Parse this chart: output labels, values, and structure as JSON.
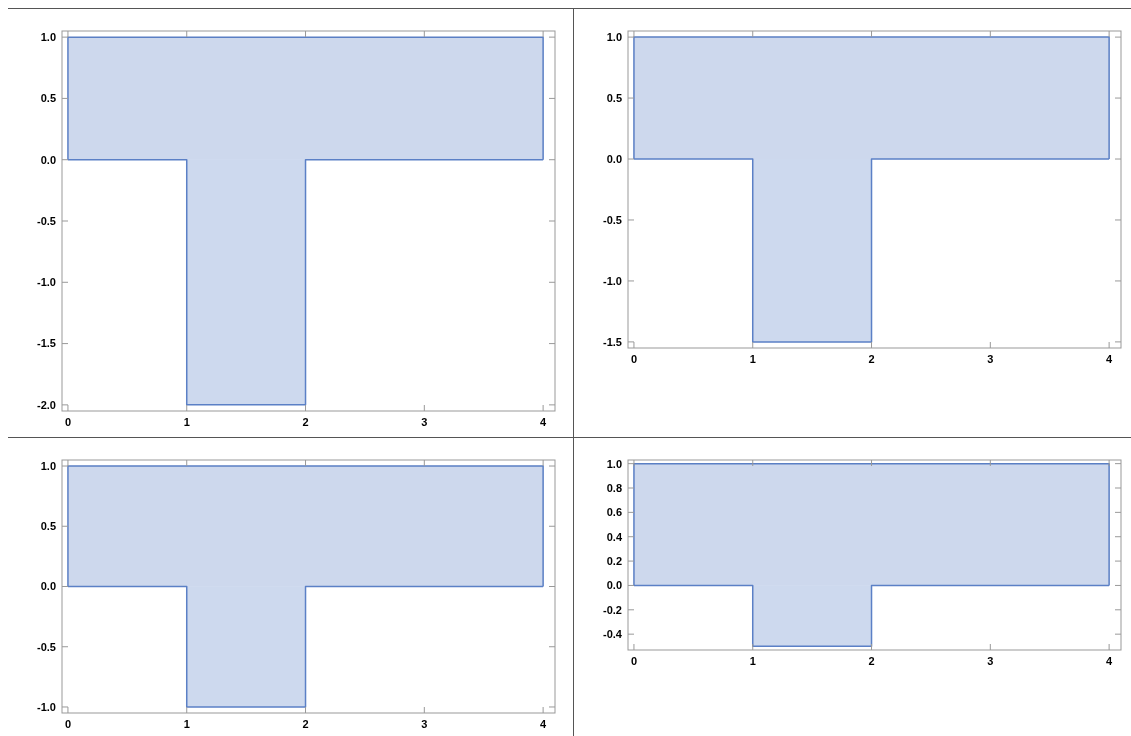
{
  "chart_data": [
    {
      "type": "area",
      "xlim": [
        -0.05,
        4.1
      ],
      "ylim": [
        -2.05,
        1.05
      ],
      "xticks": [
        0,
        1,
        2,
        3,
        4
      ],
      "yticks": [
        {
          "value": -2,
          "label": "-2.0"
        },
        {
          "value": -1.5,
          "label": "-1.5"
        },
        {
          "value": -1,
          "label": "-1.0"
        },
        {
          "value": -0.5,
          "label": "-0.5"
        },
        {
          "value": 0,
          "label": "0.0"
        },
        {
          "value": 0.5,
          "label": "0.5"
        },
        {
          "value": 1,
          "label": "1.0"
        }
      ],
      "series": [
        {
          "color": "#5a7fc4",
          "x": [
            0,
            0,
            4,
            4
          ],
          "values": [
            0,
            1,
            1,
            0
          ]
        },
        {
          "color": "#5b80c6",
          "x": [
            0,
            1,
            1,
            2,
            2,
            4
          ],
          "values": [
            0,
            0,
            -2,
            -2,
            0,
            0
          ]
        }
      ]
    },
    {
      "type": "area",
      "xlim": [
        -0.05,
        4.1
      ],
      "ylim": [
        -1.55,
        1.05
      ],
      "xticks": [
        0,
        1,
        2,
        3,
        4
      ],
      "yticks": [
        {
          "value": -1.5,
          "label": "-1.5"
        },
        {
          "value": -1,
          "label": "-1.0"
        },
        {
          "value": -0.5,
          "label": "-0.5"
        },
        {
          "value": 0,
          "label": "0.0"
        },
        {
          "value": 0.5,
          "label": "0.5"
        },
        {
          "value": 1,
          "label": "1.0"
        }
      ],
      "series": [
        {
          "color": "#5a7fc4",
          "x": [
            0,
            0,
            4,
            4
          ],
          "values": [
            0,
            1,
            1,
            0
          ]
        },
        {
          "color": "#5b80c6",
          "x": [
            0,
            1,
            1,
            2,
            2,
            4
          ],
          "values": [
            0,
            0,
            -1.5,
            -1.5,
            0,
            0
          ]
        }
      ]
    },
    {
      "type": "area",
      "xlim": [
        -0.05,
        4.1
      ],
      "ylim": [
        -1.05,
        1.05
      ],
      "xticks": [
        0,
        1,
        2,
        3,
        4
      ],
      "yticks": [
        {
          "value": -1,
          "label": "-1.0"
        },
        {
          "value": -0.5,
          "label": "-0.5"
        },
        {
          "value": 0,
          "label": "0.0"
        },
        {
          "value": 0.5,
          "label": "0.5"
        },
        {
          "value": 1,
          "label": "1.0"
        }
      ],
      "series": [
        {
          "color": "#5a7fc4",
          "x": [
            0,
            0,
            4,
            4
          ],
          "values": [
            0,
            1,
            1,
            0
          ]
        },
        {
          "color": "#5b80c6",
          "x": [
            0,
            1,
            1,
            2,
            2,
            4
          ],
          "values": [
            0,
            0,
            -1,
            -1,
            0,
            0
          ]
        }
      ]
    },
    {
      "type": "area",
      "xlim": [
        -0.05,
        4.1
      ],
      "ylim": [
        -0.53,
        1.03
      ],
      "xticks": [
        0,
        1,
        2,
        3,
        4
      ],
      "yticks": [
        {
          "value": -0.4,
          "label": "-0.4"
        },
        {
          "value": -0.2,
          "label": "-0.2"
        },
        {
          "value": 0,
          "label": "0.0"
        },
        {
          "value": 0.2,
          "label": "0.2"
        },
        {
          "value": 0.4,
          "label": "0.4"
        },
        {
          "value": 0.6,
          "label": "0.6"
        },
        {
          "value": 0.8,
          "label": "0.8"
        },
        {
          "value": 1,
          "label": "1.0"
        }
      ],
      "series": [
        {
          "color": "#5a7fc4",
          "x": [
            0,
            0,
            4,
            4
          ],
          "values": [
            0,
            1,
            1,
            0
          ]
        },
        {
          "color": "#5b80c6",
          "x": [
            0,
            1,
            1,
            2,
            2,
            4
          ],
          "values": [
            0,
            0,
            -0.5,
            -0.5,
            0,
            0
          ]
        }
      ]
    }
  ]
}
